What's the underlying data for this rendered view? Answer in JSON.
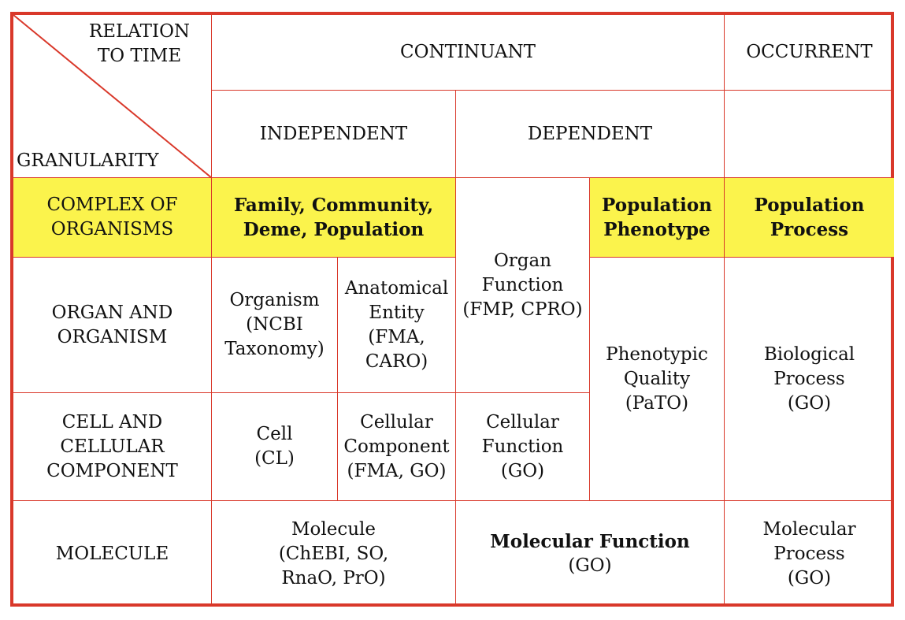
{
  "corner": {
    "relation_to_time": "RELATION\nTO TIME",
    "granularity": "GRANULARITY"
  },
  "headers": {
    "continuant": "CONTINUANT",
    "occurrent": "OCCURRENT",
    "independent": "INDEPENDENT",
    "dependent": "DEPENDENT"
  },
  "rows": {
    "complex_of_organisms": "COMPLEX OF\nORGANISMS",
    "organ_and_organism": "ORGAN AND\nORGANISM",
    "cell_and_cellular_component": "CELL AND\nCELLULAR\nCOMPONENT",
    "molecule": "MOLECULE"
  },
  "cells": {
    "family_community": "Family, Community,\nDeme, Population",
    "organ_function": "Organ\nFunction\n(FMP, CPRO)",
    "population_phenotype": "Population\nPhenotype",
    "population_process": "Population\nProcess",
    "organism": "Organism\n(NCBI\nTaxonomy)",
    "anatomical_entity": "Anatomical\nEntity\n(FMA,\nCARO)",
    "phenotypic_quality": "Phenotypic\nQuality\n(PaTO)",
    "biological_process": "Biological\nProcess\n(GO)",
    "cell": "Cell\n(CL)",
    "cellular_component": "Cellular\nComponent\n(FMA, GO)",
    "cellular_function": "Cellular\nFunction\n(GO)",
    "molecule": "Molecule\n(ChEBI, SO,\nRnaO, PrO)",
    "molecular_function_title": "Molecular Function",
    "molecular_function_source": "(GO)",
    "molecular_process": "Molecular Process\n(GO)"
  },
  "colors": {
    "border": "#d9382a",
    "highlight": "#fbf34c",
    "text": "#111111"
  }
}
